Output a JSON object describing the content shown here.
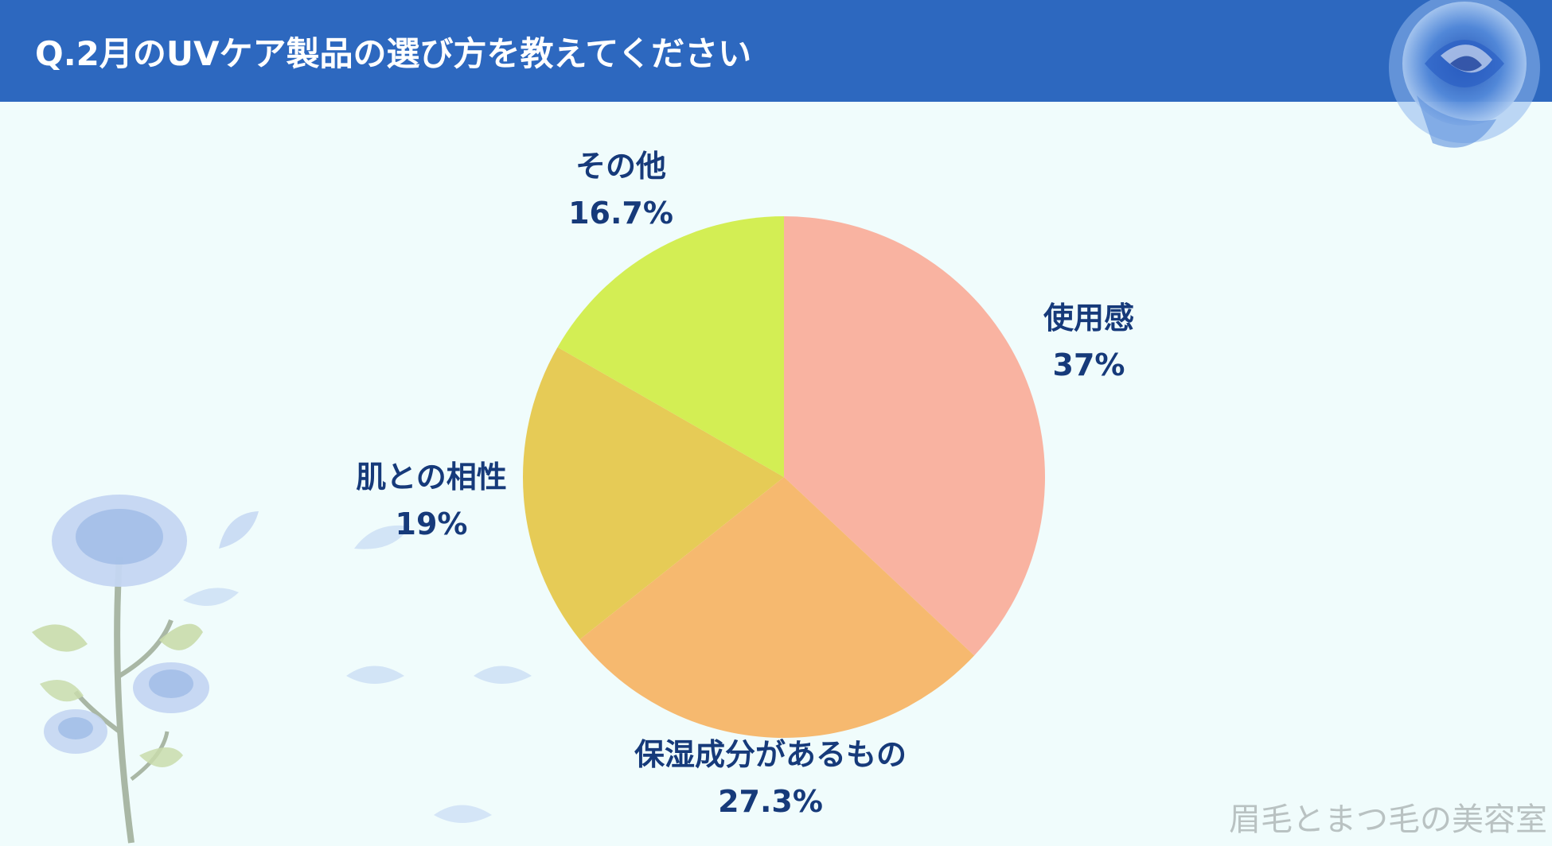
{
  "header": {
    "title": "Q.2月のUVケア製品の選び方を教えてください"
  },
  "chart_data": {
    "type": "pie",
    "title": "Q.2月のUVケア製品の選び方を教えてください",
    "start_angle_deg": 0,
    "direction": "clockwise",
    "slices": [
      {
        "label": "使用感",
        "value": 37,
        "value_label": "37%",
        "color": "#f9b3a1"
      },
      {
        "label": "保湿成分があるもの",
        "value": 27.3,
        "value_label": "27.3%",
        "color": "#f6b96f"
      },
      {
        "label": "肌との相性",
        "value": 19,
        "value_label": "19%",
        "color": "#e6cb56"
      },
      {
        "label": "その他",
        "value": 16.7,
        "value_label": "16.7%",
        "color": "#d3ee54"
      }
    ],
    "label_color": "#163a7a"
  },
  "colors": {
    "header_bg": "#2d68bf",
    "background": "#f0fcfc"
  },
  "decor": {
    "top_right": "blue-rose-icon",
    "bottom_left": "blue-rose-branch-icon"
  },
  "watermark": "眉毛とまつ毛の美容室"
}
